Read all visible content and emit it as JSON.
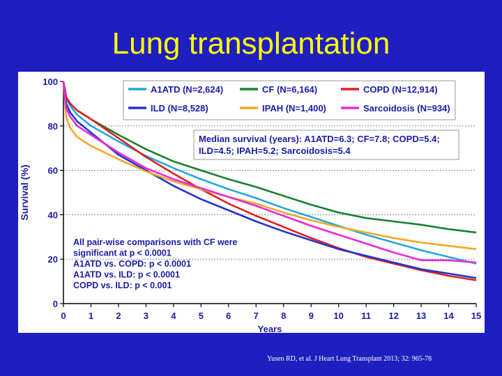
{
  "slide": {
    "title": "Lung transplantation",
    "citation": "Yusen RD, et al.  J Heart Lung Transplant 2013; 32: 965-78"
  },
  "colors": {
    "background": "#1f1fbf",
    "title": "#ffff00",
    "panel": "#ffffff",
    "annotation_text": "#1a1aa8"
  },
  "chart_data": {
    "type": "line",
    "xlabel": "Years",
    "ylabel": "Survival (%)",
    "xlim": [
      0,
      15
    ],
    "ylim": [
      0,
      100
    ],
    "x_ticks": [
      0,
      1,
      2,
      3,
      4,
      5,
      6,
      7,
      8,
      9,
      10,
      11,
      12,
      13,
      14,
      15
    ],
    "y_ticks": [
      0,
      20,
      40,
      60,
      80,
      100
    ],
    "grid": "horizontal dashed at 20, 40, 60, 80",
    "legend_position": "top",
    "series": [
      {
        "name": "A1ATD (N=2,624)",
        "color": "#22a7dc",
        "x": [
          0,
          0.1,
          0.25,
          0.5,
          1,
          2,
          3,
          4,
          5,
          6,
          7,
          8,
          9,
          10,
          11,
          12,
          13,
          14,
          15
        ],
        "y": [
          100,
          92,
          89,
          85,
          80,
          73,
          66.5,
          61,
          56,
          51.5,
          47.5,
          43,
          39,
          35,
          31,
          27.5,
          24,
          21,
          18
        ]
      },
      {
        "name": "CF (N=6,164)",
        "color": "#1a7f2e",
        "x": [
          0,
          0.1,
          0.25,
          0.5,
          1,
          2,
          3,
          4,
          5,
          6,
          7,
          8,
          9,
          10,
          11,
          12,
          13,
          14,
          15
        ],
        "y": [
          100,
          93,
          90,
          87,
          83,
          76,
          69.5,
          64,
          60,
          56,
          52.5,
          48.5,
          44.5,
          41,
          38.5,
          37,
          35.5,
          33.5,
          32
        ]
      },
      {
        "name": "COPD (N=12,914)",
        "color": "#e02020",
        "x": [
          0,
          0.1,
          0.25,
          0.5,
          1,
          2,
          3,
          4,
          5,
          6,
          7,
          8,
          9,
          10,
          11,
          12,
          13,
          14,
          15
        ],
        "y": [
          100,
          93,
          90,
          87,
          83,
          74.5,
          66,
          58.5,
          51.5,
          45,
          39.5,
          34.5,
          29.5,
          25,
          21,
          18,
          15,
          12.5,
          10.5
        ]
      },
      {
        "name": "ILD (N=8,528)",
        "color": "#2233cc",
        "x": [
          0,
          0.1,
          0.25,
          0.5,
          1,
          2,
          3,
          4,
          5,
          6,
          7,
          8,
          9,
          10,
          11,
          12,
          13,
          14,
          15
        ],
        "y": [
          100,
          90,
          86,
          82,
          77,
          67,
          60,
          53,
          47,
          42,
          37,
          32.5,
          28.5,
          24.5,
          21.5,
          18.5,
          15.5,
          13.5,
          11.5
        ]
      },
      {
        "name": "IPAH (N=1,400)",
        "color": "#f5a623",
        "x": [
          0,
          0.1,
          0.25,
          0.5,
          1,
          2,
          3,
          4,
          5,
          6,
          7,
          8,
          9,
          10,
          11,
          12,
          13,
          14,
          15
        ],
        "y": [
          100,
          84,
          79,
          75,
          71,
          65,
          59.5,
          55,
          51.5,
          48,
          45,
          41,
          37.5,
          34.5,
          32,
          29.5,
          27.5,
          26,
          24.5
        ]
      },
      {
        "name": "Sarcoidosis (N=934)",
        "color": "#e82ad6",
        "x": [
          0,
          0.1,
          0.25,
          0.5,
          1,
          2,
          3,
          4,
          5,
          6,
          7,
          8,
          9,
          10,
          11,
          12,
          13,
          14,
          15
        ],
        "y": [
          100,
          88,
          84,
          80,
          76,
          68,
          61,
          56,
          52,
          48,
          44,
          39.5,
          35,
          31,
          27,
          23,
          19.5,
          19.5,
          18.5
        ]
      }
    ],
    "annotations": {
      "median_lines": [
        "Median survival (years): A1ATD=6.3; CF=7.8; COPD=5.4;",
        "ILD=4.5; IPAH=5.2; Sarcoidosis=5.4"
      ],
      "comparison_lines": [
        "All pair-wise comparisons with CF were",
        "significant at p < 0.0001",
        "A1ATD vs. COPD: p < 0.0001",
        "A1ATD vs. ILD: p < 0.0001",
        "COPD vs. ILD: p < 0.001"
      ]
    }
  }
}
